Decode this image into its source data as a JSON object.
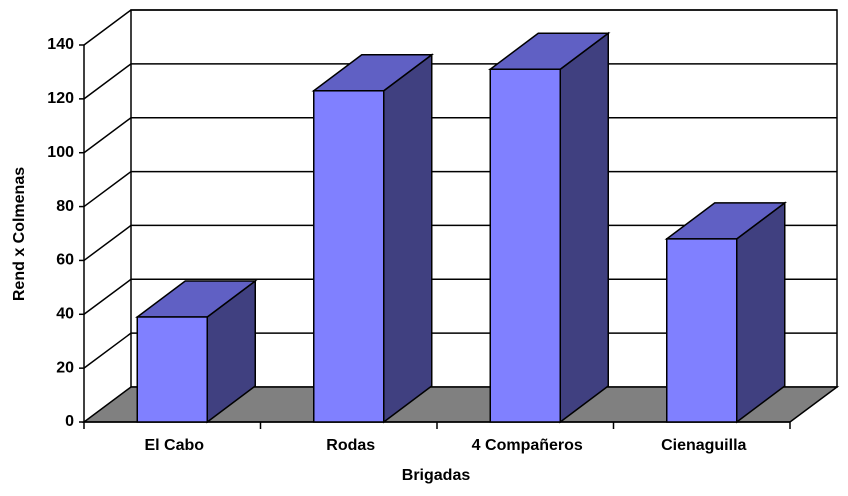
{
  "chart_data": {
    "type": "bar3d",
    "x_label": "Brigadas",
    "y_label": "Rend x Colmenas",
    "categories": [
      "El Cabo",
      "Rodas",
      "4 Compañeros",
      "Cienaguilla"
    ],
    "values": [
      39,
      123,
      131,
      68
    ],
    "color": "#8080ff",
    "ylim": [
      0,
      140
    ],
    "yticks": [
      0,
      20,
      40,
      60,
      80,
      100,
      120,
      140
    ],
    "grid": true
  }
}
